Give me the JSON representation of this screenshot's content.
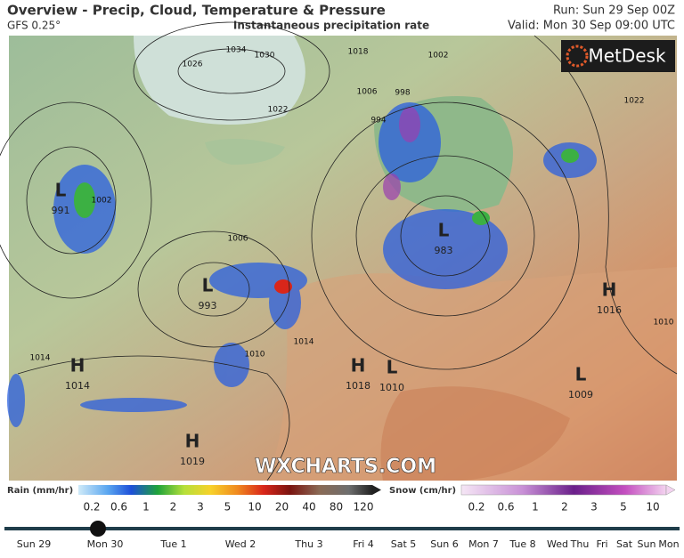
{
  "header": {
    "title": "Overview - Precip, Cloud, Temperature & Pressure",
    "model": "GFS 0.25°",
    "subtitle": "Instantaneous precipitation rate",
    "run": "Run: Sun 29 Sep 00Z",
    "valid": "Valid: Mon 30 Sep 09:00 UTC"
  },
  "map": {
    "logo": "MetDesk",
    "watermark": "WXCHARTS.COM",
    "pressure_centers": [
      {
        "type": "L",
        "value": 991
      },
      {
        "type": "L",
        "value": 983
      },
      {
        "type": "L",
        "value": 993
      },
      {
        "type": "H",
        "value": 1016
      },
      {
        "type": "H",
        "value": 1014
      },
      {
        "type": "H",
        "value": 1018
      },
      {
        "type": "L",
        "value": 1010
      },
      {
        "type": "L",
        "value": 1009
      },
      {
        "type": "H",
        "value": 1019
      }
    ],
    "isobar_labels": [
      1034,
      1030,
      1026,
      1022,
      1018,
      1002,
      998,
      994,
      1006,
      1010,
      1014,
      1002,
      1014,
      1022,
      1010,
      1006
    ]
  },
  "legend": {
    "rain": {
      "title": "Rain (mm/hr)",
      "ticks": [
        0.2,
        0.6,
        1,
        2,
        3,
        5,
        10,
        20,
        40,
        80,
        120
      ]
    },
    "snow": {
      "title": "Snow (cm/hr)",
      "ticks": [
        0.2,
        0.6,
        1,
        2,
        3,
        5,
        10
      ]
    }
  },
  "timeline": {
    "days": [
      "Sun 29",
      "Mon 30",
      "Tue 1",
      "Wed 2",
      "Thu 3",
      "Fri 4",
      "Sat 5",
      "Sun 6",
      "Mon 7",
      "Tue 8",
      "Wed",
      "Thu",
      "Fri",
      "Sat",
      "Sun",
      "Mon"
    ]
  }
}
